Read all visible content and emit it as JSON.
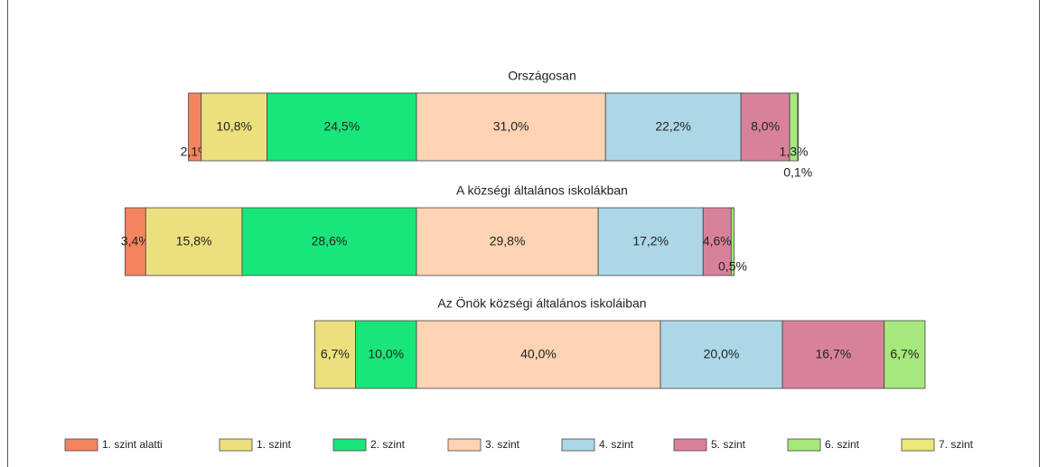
{
  "chart_data": {
    "type": "bar",
    "orientation": "horizontal",
    "stacked": true,
    "categories": [
      "Országosan",
      "A községi általános iskolákban",
      "Az Önök községi általános iskoláiban"
    ],
    "series": [
      {
        "name": "1. szint alatti",
        "color": "#f4845f",
        "values": [
          2.1,
          3.4,
          null
        ],
        "value_labels": [
          "2,1%",
          "3,4%",
          null
        ]
      },
      {
        "name": "1. szint",
        "color": "#ece07e",
        "values": [
          10.8,
          15.8,
          6.7
        ],
        "value_labels": [
          "10,8%",
          "15,8%",
          "6,7%"
        ]
      },
      {
        "name": "2. szint",
        "color": "#19e67a",
        "values": [
          24.5,
          28.6,
          10.0
        ],
        "value_labels": [
          "24,5%",
          "28,6%",
          "10,0%"
        ]
      },
      {
        "name": "3. szint",
        "color": "#fdd3b3",
        "values": [
          31.0,
          29.8,
          40.0
        ],
        "value_labels": [
          "31,0%",
          "29,8%",
          "40,0%"
        ]
      },
      {
        "name": "4. szint",
        "color": "#acd7e6",
        "values": [
          22.2,
          17.2,
          20.0
        ],
        "value_labels": [
          "22,2%",
          "17,2%",
          "20,0%"
        ]
      },
      {
        "name": "5. szint",
        "color": "#d8829a",
        "values": [
          8.0,
          4.6,
          16.7
        ],
        "value_labels": [
          "8,0%",
          "4,6%",
          "16,7%"
        ]
      },
      {
        "name": "6. szint",
        "color": "#a6e87b",
        "values": [
          1.3,
          0.5,
          6.7
        ],
        "value_labels": [
          "1,3%",
          "0,5%",
          "6,7%"
        ]
      },
      {
        "name": "7. szint",
        "color": "#ece87a",
        "values": [
          0.1,
          null,
          null
        ],
        "value_labels": [
          "0,1%",
          null,
          null
        ]
      }
    ]
  }
}
